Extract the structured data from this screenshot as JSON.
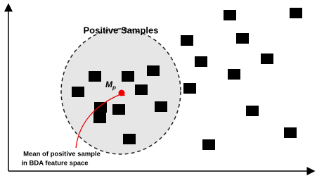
{
  "title": "Positive Samples",
  "mean_label": {
    "symbol": "M",
    "subscript": "p"
  },
  "annotation": [
    "Mean of positive sample",
    "in BDA feature space"
  ]
}
